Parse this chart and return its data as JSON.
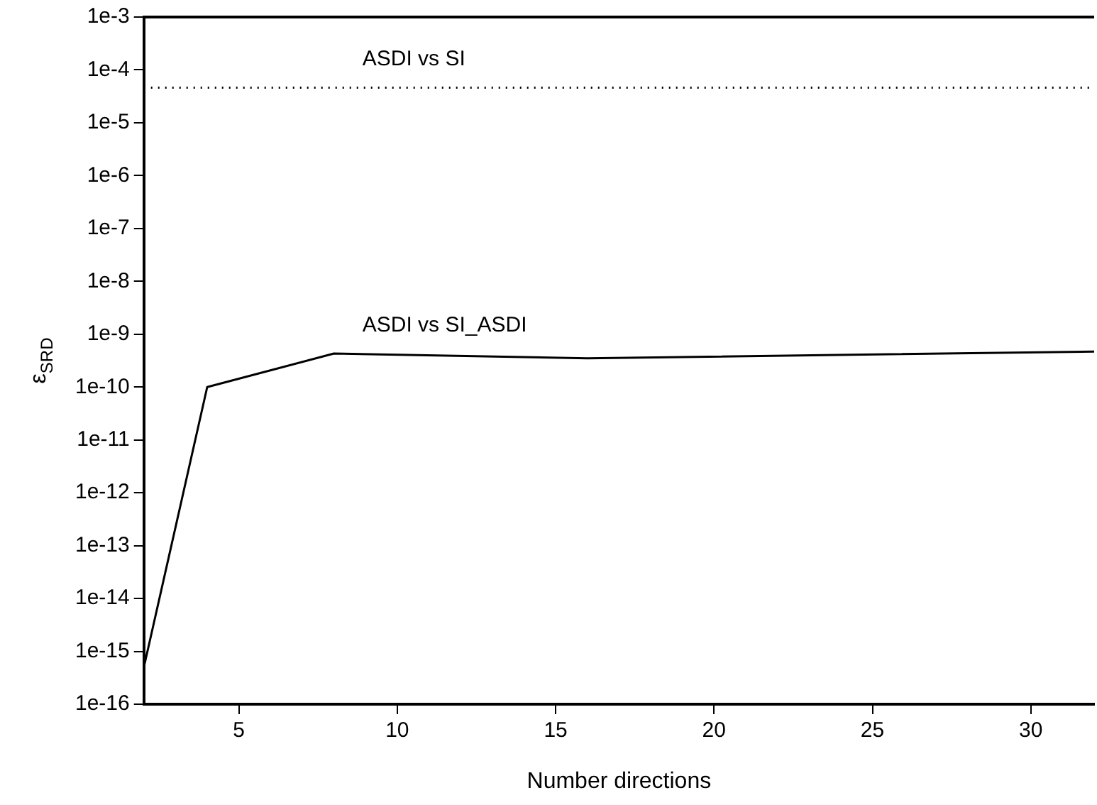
{
  "chart_data": {
    "type": "line",
    "xlabel": "Number directions",
    "ylabel": "ε$_{SRD}$",
    "log": "y",
    "series": [
      {
        "name": "ASDI vs SI",
        "color": "#000000",
        "line_style": "dotted",
        "x": [
          2,
          32
        ],
        "values": [
          4.6e-05,
          4.6e-05
        ]
      },
      {
        "name": "ASDI vs SI_ASDI",
        "color": "#000000",
        "line_style": "solid",
        "x": [
          2,
          4,
          8,
          16,
          32
        ],
        "values": [
          5e-16,
          1e-10,
          4.3e-10,
          3.5e-10,
          4.7e-10
        ]
      }
    ],
    "xlim": [
      2,
      32
    ],
    "xticks": [
      5,
      10,
      15,
      20,
      25,
      30
    ],
    "ylim": [
      1e-16,
      0.001
    ],
    "yticks": [
      {
        "value": 1e-16,
        "label": "1e-16"
      },
      {
        "value": 1e-15,
        "label": "1e-15"
      },
      {
        "value": 1e-14,
        "label": "1e-14"
      },
      {
        "value": 1e-13,
        "label": "1e-13"
      },
      {
        "value": 1e-12,
        "label": "1e-12"
      },
      {
        "value": 1e-11,
        "label": "1e-11"
      },
      {
        "value": 1e-10,
        "label": "1e-10"
      },
      {
        "value": 1e-09,
        "label": "1e-9"
      },
      {
        "value": 1e-08,
        "label": "1e-8"
      },
      {
        "value": 1e-07,
        "label": "1e-7"
      },
      {
        "value": 1e-06,
        "label": "1e-6"
      },
      {
        "value": 1e-05,
        "label": "1e-5"
      },
      {
        "value": 0.0001,
        "label": "1e-4"
      },
      {
        "value": 0.001,
        "label": "1e-3"
      }
    ],
    "grid": false,
    "legend": false,
    "marker": "none"
  }
}
